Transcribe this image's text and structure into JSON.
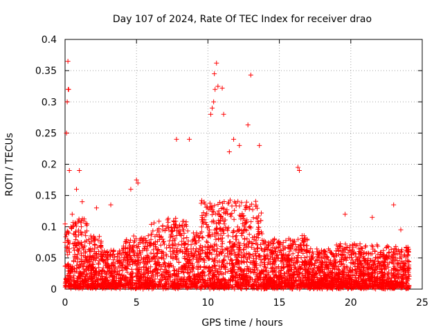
{
  "chart_data": {
    "type": "scatter",
    "title": "Day 107 of 2024, Rate Of TEC Index for receiver drao",
    "xlabel": "GPS time / hours",
    "ylabel": "ROTI / TECUs",
    "xlim": [
      0,
      25
    ],
    "ylim": [
      0,
      0.4
    ],
    "x_ticks": [
      "0",
      "5",
      "10",
      "15",
      "20",
      "25"
    ],
    "y_ticks": [
      "0",
      "0.05",
      "0.1",
      "0.15",
      "0.2",
      "0.25",
      "0.3",
      "0.35",
      "0.4"
    ],
    "grid": true,
    "legend": "none",
    "marker": "plus",
    "color": "#ff0000",
    "series": [
      {
        "x": [
          0.1,
          0.15,
          0.2,
          0.22,
          0.25,
          0.3,
          0.5,
          0.8,
          1.0,
          1.2,
          2.2,
          3.2,
          4.6,
          5.0,
          5.1,
          7.8,
          8.7,
          10.2,
          10.3,
          10.4,
          10.45,
          10.5,
          10.6,
          10.7,
          11.0,
          11.1,
          11.5,
          11.8,
          12.2,
          12.8,
          13.0,
          13.6,
          16.3,
          16.4,
          19.6,
          21.5,
          23.0,
          23.5
        ],
        "y": [
          0.25,
          0.3,
          0.365,
          0.32,
          0.32,
          0.19,
          0.12,
          0.16,
          0.19,
          0.14,
          0.13,
          0.135,
          0.16,
          0.175,
          0.17,
          0.24,
          0.24,
          0.28,
          0.29,
          0.3,
          0.345,
          0.32,
          0.362,
          0.325,
          0.322,
          0.28,
          0.22,
          0.24,
          0.23,
          0.263,
          0.343,
          0.23,
          0.195,
          0.19,
          0.12,
          0.115,
          0.135,
          0.095
        ]
      }
    ]
  }
}
